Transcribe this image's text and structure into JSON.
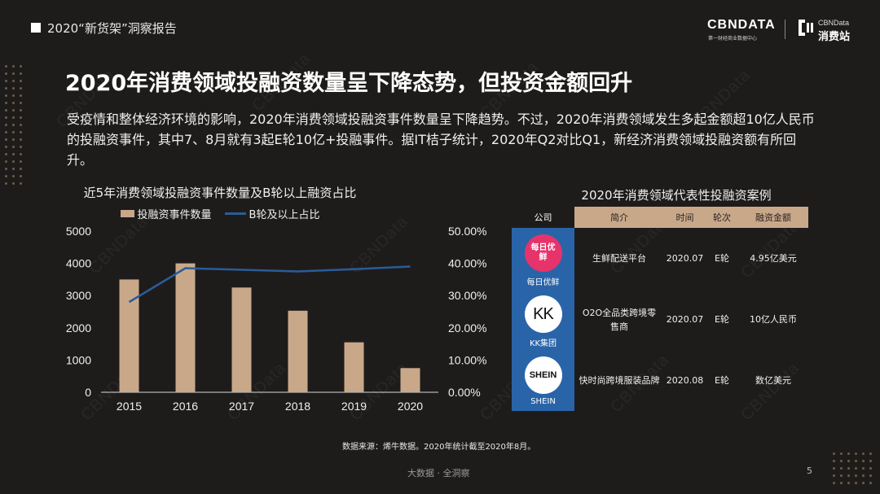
{
  "header": {
    "title": "2020“新货架”洞察报告"
  },
  "brand": {
    "logo_main": "CBNDATA",
    "logo_sub": "第一财经商业数据中心",
    "logo2_top": "CBNData",
    "logo2_bottom": "消费站"
  },
  "watermark": "CBNData",
  "main_title": "2020年消费领域投融资数量呈下降态势，但投资金额回升",
  "paragraph": "受疫情和整体经济环境的影响，2020年消费领域投融资事件数量呈下降趋势。不过，2020年消费领域发生多起金额超10亿人民币的投融资事件，其中7、8月就有3起E轮10亿+投融事件。据IT桔子统计，2020年Q2对比Q1，新经济消费领域投融资额有所回升。",
  "chart_data": {
    "type": "bar",
    "title": "近5年消费领域投融资事件数量及B轮以上融资占比",
    "categories": [
      "2015",
      "2016",
      "2017",
      "2018",
      "2019",
      "2020"
    ],
    "series": [
      {
        "name": "投融资事件数量",
        "type": "bar",
        "axis": "left",
        "color": "#c9a88a",
        "values": [
          3500,
          4000,
          3250,
          2530,
          1550,
          750
        ]
      },
      {
        "name": "B轮及以上占比",
        "type": "line",
        "axis": "right",
        "color": "#2a5c9a",
        "values": [
          28,
          38.5,
          38,
          37.5,
          38.2,
          39
        ]
      }
    ],
    "y_left": {
      "min": 0,
      "max": 5000,
      "ticks": [
        "0",
        "1000",
        "2000",
        "3000",
        "4000",
        "5000"
      ]
    },
    "y_right": {
      "min": 0,
      "max": 50,
      "ticks": [
        "0.00%",
        "10.00%",
        "20.00%",
        "30.00%",
        "40.00%",
        "50.00%"
      ]
    },
    "grid": false,
    "legend": "top"
  },
  "table": {
    "title": "2020年消费领域代表性投融资案例",
    "headers": [
      "公司",
      "简介",
      "时间",
      "轮次",
      "融资金额"
    ],
    "rows": [
      {
        "company": "每日优鲜",
        "logo_text": "每日优鲜",
        "desc": "生鲜配送平台",
        "time": "2020.07",
        "round": "E轮",
        "amount": "4.95亿美元"
      },
      {
        "company": "KK集团",
        "logo_text": "KK",
        "desc": "O2O全品类跨境零售商",
        "time": "2020.07",
        "round": "E轮",
        "amount": "10亿人民币"
      },
      {
        "company": "SHEIN",
        "logo_text": "SHEIN",
        "desc": "快时尚跨境服装品牌",
        "time": "2020.08",
        "round": "E轮",
        "amount": "数亿美元"
      }
    ]
  },
  "source": "数据来源：烯牛数据。2020年统计截至2020年8月。",
  "footer": "大数据 · 全洞察",
  "page_number": "5"
}
